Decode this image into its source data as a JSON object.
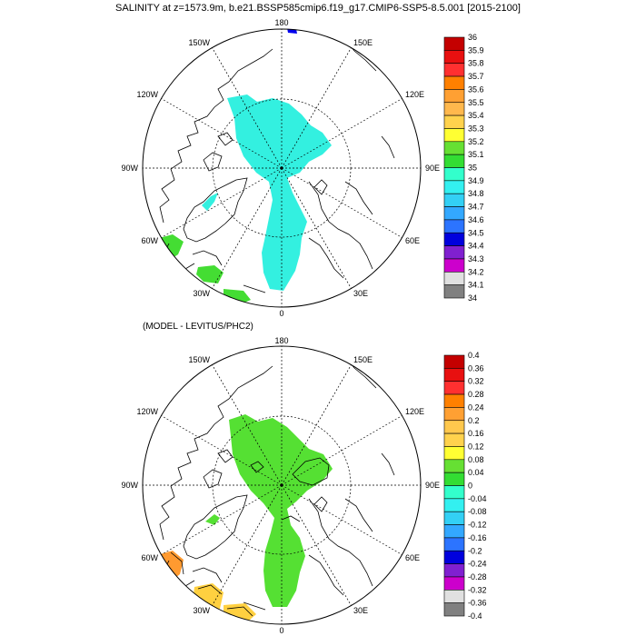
{
  "title": "SALINITY at z=1573.9m, b.e21.BSSP585cmip6.f19_g17.CMIP6-SSP5-8.5.001 [2015-2100]",
  "panel2_title": "(MODEL - LEVITUS/PHC2)",
  "lon_labels": {
    "top": "180",
    "bottom": "0",
    "left": "90W",
    "right": "90E",
    "ul1": "150W",
    "ul2": "120W",
    "ur1": "150E",
    "ur2": "120E",
    "ll1": "60W",
    "ll2": "30W",
    "lr1": "60E",
    "lr2": "30E"
  },
  "colorbar1": {
    "labels": [
      "36",
      "35.9",
      "35.8",
      "35.7",
      "35.6",
      "35.5",
      "35.4",
      "35.3",
      "35.2",
      "35.1",
      "35",
      "34.9",
      "34.8",
      "34.7",
      "34.6",
      "34.5",
      "34.4",
      "34.3",
      "34.2",
      "34.1",
      "34"
    ],
    "colors": [
      "#c40000",
      "#e81010",
      "#ff3030",
      "#ff8000",
      "#ffa033",
      "#ffb84d",
      "#ffd24d",
      "#ffff33",
      "#66e033",
      "#33dd33",
      "#33ffcc",
      "#33f0f0",
      "#33d0f5",
      "#33a8ff",
      "#2c74ff",
      "#0000dd",
      "#8020d0",
      "#cc00cc",
      "#e0e0e0",
      "#808080"
    ]
  },
  "colorbar2": {
    "labels": [
      "0.4",
      "0.36",
      "0.32",
      "0.28",
      "0.24",
      "0.2",
      "0.16",
      "0.12",
      "0.08",
      "0.04",
      "0",
      "-0.04",
      "-0.08",
      "-0.12",
      "-0.16",
      "-0.2",
      "-0.24",
      "-0.28",
      "-0.32",
      "-0.36",
      "-0.4"
    ],
    "colors": [
      "#c40000",
      "#e81010",
      "#ff3030",
      "#ff8000",
      "#ffa033",
      "#ffc84d",
      "#ffd24d",
      "#ffff33",
      "#66e033",
      "#33dd33",
      "#33ffcc",
      "#33f0f0",
      "#33d0f5",
      "#33a8ff",
      "#2c74ff",
      "#0000dd",
      "#8020d0",
      "#cc00cc",
      "#e0e0e0",
      "#808080"
    ]
  },
  "fill_colors": {
    "p1_main": "#33f0e0",
    "p1_green": "#44dd33",
    "p1_blue": "#0000ee",
    "p2_main": "#55e033",
    "p2_orange": "#ff9a30",
    "p2_yellow": "#ffd040"
  }
}
